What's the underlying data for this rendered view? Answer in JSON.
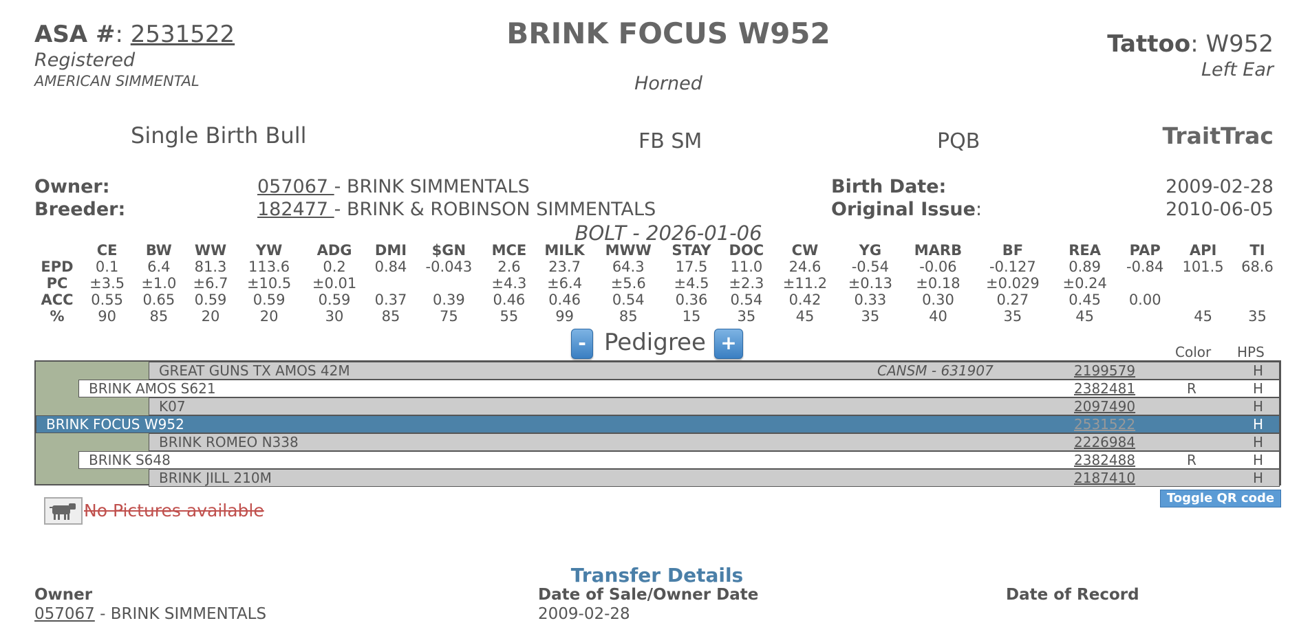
{
  "header": {
    "asa_label": "ASA #",
    "asa_number": "2531522",
    "reg_status": "Registered",
    "breed": "AMERICAN SIMMENTAL",
    "animal_name": "BRINK FOCUS W952",
    "horn_status": "Horned",
    "tattoo_label": "Tattoo",
    "tattoo_value": "W952",
    "tattoo_location": "Left Ear"
  },
  "summary": {
    "birth_type": "Single Birth Bull",
    "bloodline": "FB SM",
    "pqb": "PQB",
    "traittrac": "TraitTrac"
  },
  "info": {
    "owner_label": "Owner:",
    "owner_id": "057067 ",
    "owner_name": "- BRINK SIMMENTALS",
    "breeder_label": "Breeder:",
    "breeder_id": "182477 ",
    "breeder_name": "- BRINK & ROBINSON SIMMENTALS",
    "birth_date_label": "Birth Date:",
    "birth_date": "2009-02-28",
    "original_issue_label": "Original Issue",
    "original_issue": "2010-06-05"
  },
  "evaluation": "BOLT - 2026-01-06",
  "epd_table": {
    "columns": [
      "CE",
      "BW",
      "WW",
      "YW",
      "ADG",
      "DMI",
      "$GN",
      "MCE",
      "MILK",
      "MWW",
      "STAY",
      "DOC",
      "CW",
      "YG",
      "MARB",
      "BF",
      "REA",
      "PAP",
      "API",
      "TI"
    ],
    "rows": [
      {
        "label": "EPD",
        "values": [
          "0.1",
          "6.4",
          "81.3",
          "113.6",
          "0.2",
          "0.84",
          "-0.043",
          "2.6",
          "23.7",
          "64.3",
          "17.5",
          "11.0",
          "24.6",
          "-0.54",
          "-0.06",
          "-0.127",
          "0.89",
          "-0.84",
          "101.5",
          "68.6"
        ]
      },
      {
        "label": "PC",
        "values": [
          "±3.5",
          "±1.0",
          "±6.7",
          "±10.5",
          "±0.01",
          "",
          "",
          "±4.3",
          "±6.4",
          "±5.6",
          "±4.5",
          "±2.3",
          "±11.2",
          "±0.13",
          "±0.18",
          "±0.029",
          "±0.24",
          "",
          "",
          ""
        ]
      },
      {
        "label": "ACC",
        "values": [
          "0.55",
          "0.65",
          "0.59",
          "0.59",
          "0.59",
          "0.37",
          "0.39",
          "0.46",
          "0.46",
          "0.54",
          "0.36",
          "0.54",
          "0.42",
          "0.33",
          "0.30",
          "0.27",
          "0.45",
          "0.00",
          "",
          ""
        ]
      },
      {
        "label": "%",
        "values": [
          "90",
          "85",
          "20",
          "20",
          "30",
          "85",
          "75",
          "55",
          "99",
          "85",
          "15",
          "35",
          "45",
          "35",
          "40",
          "35",
          "45",
          "",
          "45",
          "35"
        ]
      }
    ]
  },
  "pedigree": {
    "minus": "-",
    "plus": "+",
    "title": "Pedigree",
    "color_header": "Color",
    "hps_header": "HPS",
    "rows": [
      {
        "name": "GREAT GUNS TX AMOS 42M",
        "other_reg": "CANSM - 631907",
        "reg": "2199579",
        "color": "",
        "hps": "H"
      },
      {
        "name": "BRINK AMOS S621",
        "other_reg": "",
        "reg": "2382481",
        "color": "R",
        "hps": "H"
      },
      {
        "name": "K07",
        "other_reg": "",
        "reg": "2097490",
        "color": "",
        "hps": "H"
      },
      {
        "name": "BRINK FOCUS W952",
        "other_reg": "",
        "reg": "2531522",
        "color": "",
        "hps": "H"
      },
      {
        "name": "BRINK ROMEO N338",
        "other_reg": "",
        "reg": "2226984",
        "color": "",
        "hps": "H"
      },
      {
        "name": "BRINK S648",
        "other_reg": "",
        "reg": "2382488",
        "color": "R",
        "hps": "H"
      },
      {
        "name": "BRINK JILL 210M",
        "other_reg": "",
        "reg": "2187410",
        "color": "",
        "hps": "H"
      }
    ]
  },
  "pictures": {
    "icon": "cow-icon",
    "no_pictures": "No Pictures available",
    "toggle_qr": "Toggle QR code"
  },
  "transfer": {
    "title": "Transfer Details",
    "owner_header": "Owner",
    "sale_header": "Date of Sale/Owner Date",
    "record_header": "Date of Record",
    "owner_id": "057067",
    "owner_name": " - BRINK SIMMENTALS",
    "sale_date": "2009-02-28"
  }
}
